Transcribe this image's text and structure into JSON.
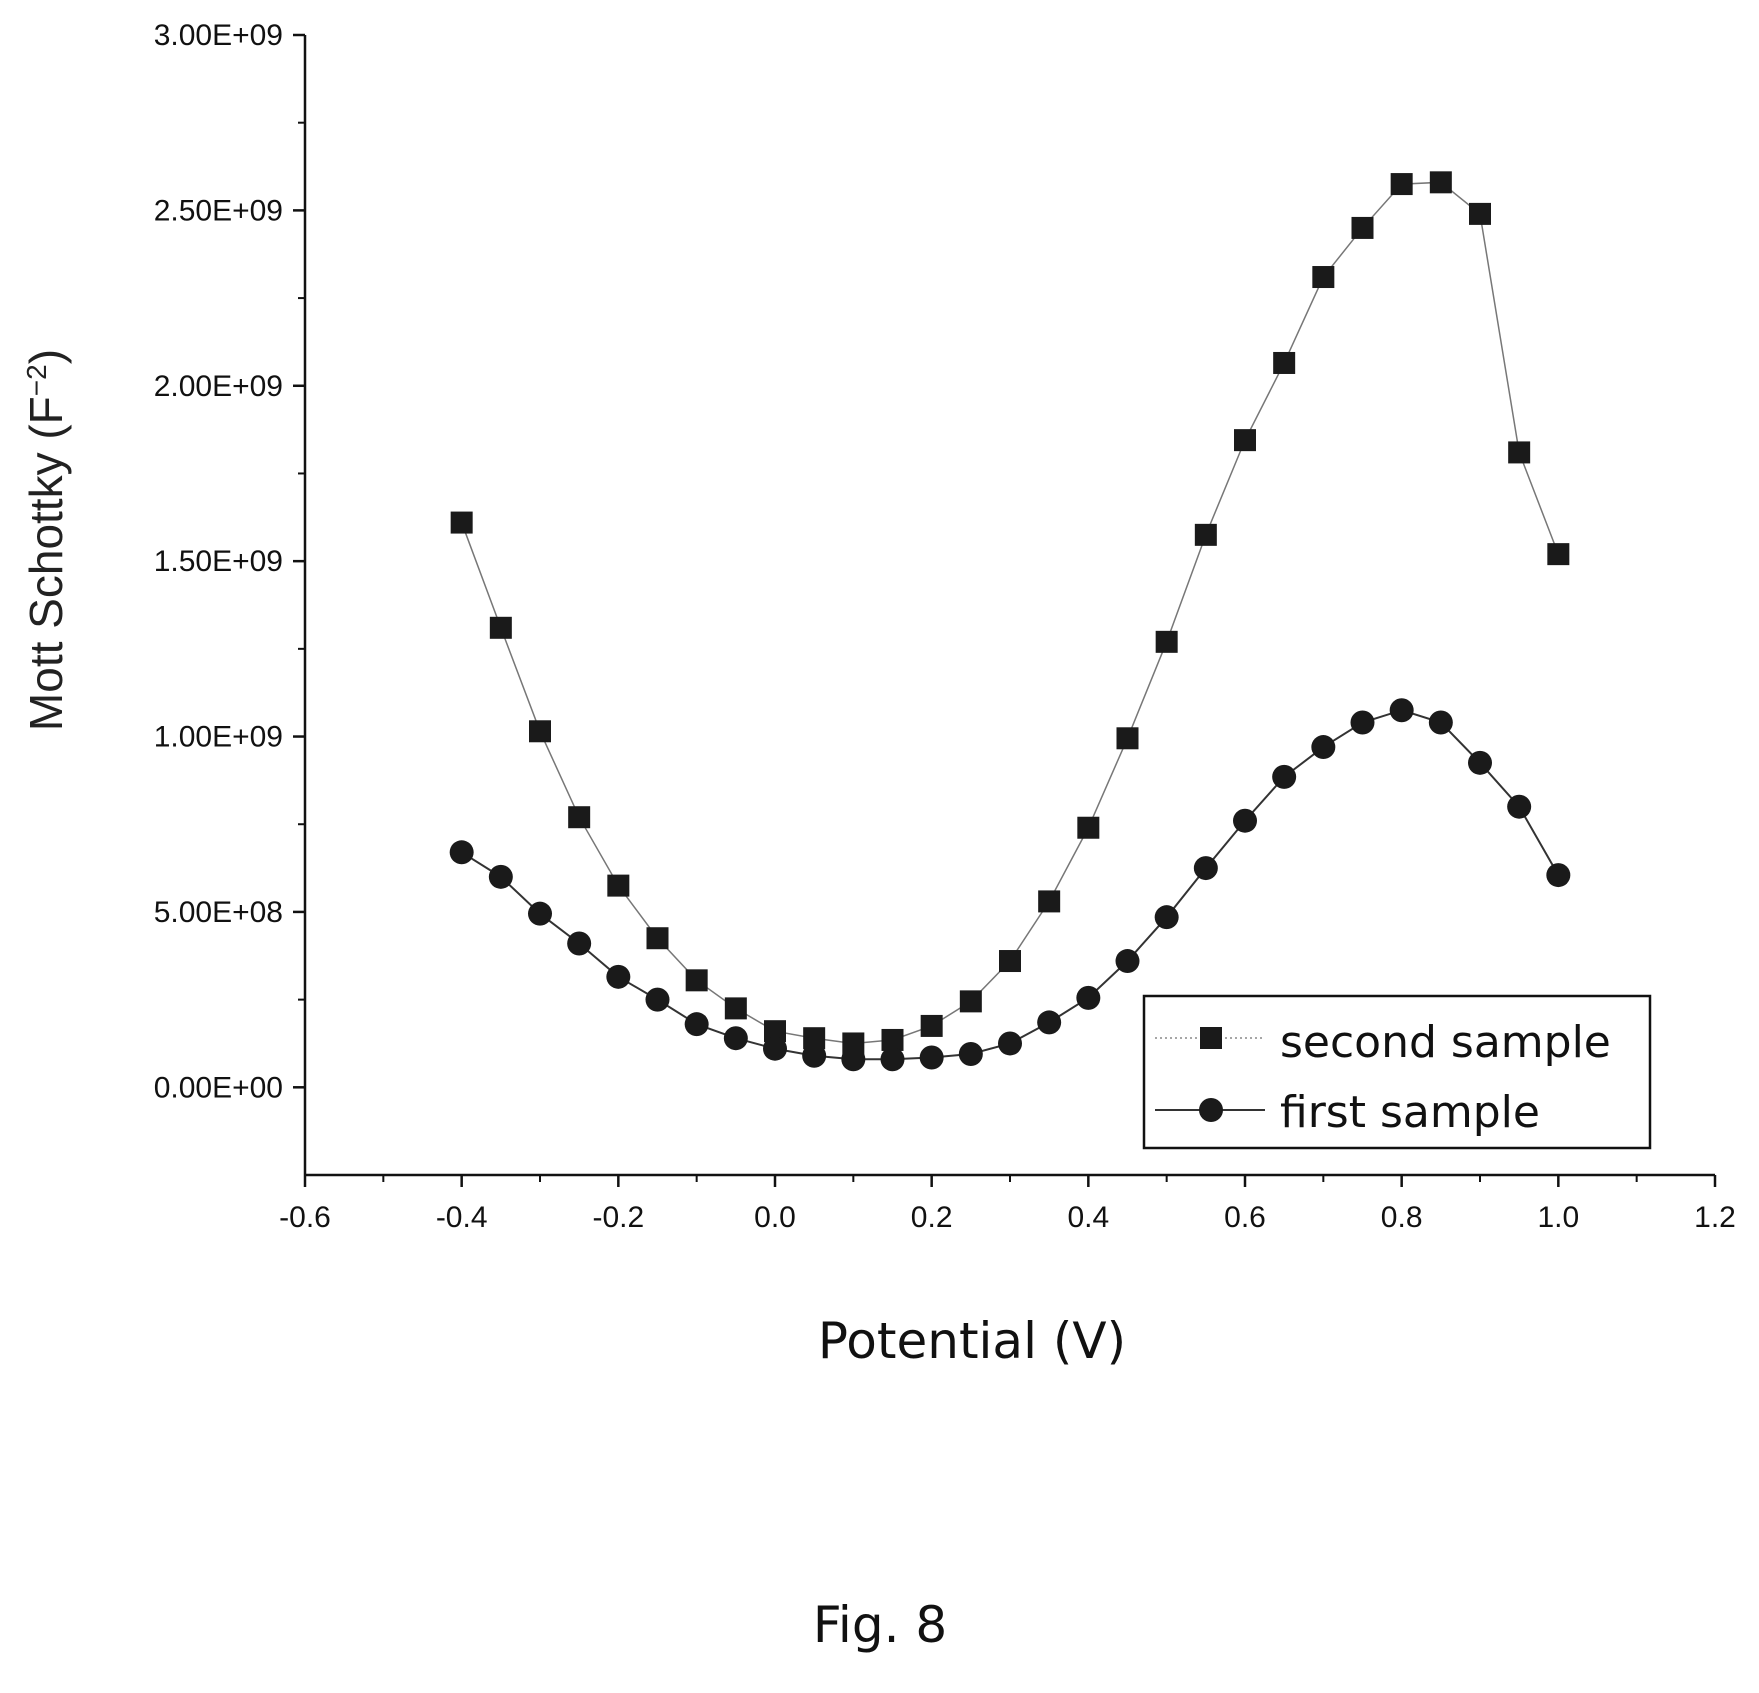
{
  "figure_caption": "Fig. 8",
  "chart_data": {
    "type": "scatter",
    "xlabel": "Potential (V)",
    "ylabel_main": "Mott Schottky (F",
    "ylabel_sup": "−2",
    "ylabel_close": ")",
    "xlim": [
      -0.6,
      1.2
    ],
    "ylim": [
      -250000000,
      3000000000
    ],
    "x_ticks": [
      -0.6,
      -0.4,
      -0.2,
      0.0,
      0.2,
      0.4,
      0.6,
      0.8,
      1.0,
      1.2
    ],
    "x_tick_labels": [
      "-0.6",
      "-0.4",
      "-0.2",
      "0.0",
      "0.2",
      "0.4",
      "0.6",
      "0.8",
      "1.0",
      "1.2"
    ],
    "y_ticks": [
      0,
      500000000,
      1000000000,
      1500000000,
      2000000000,
      2500000000,
      3000000000
    ],
    "y_tick_labels": [
      "0.00E+00",
      "5.00E+08",
      "1.00E+09",
      "1.50E+09",
      "2.00E+09",
      "2.50E+09",
      "3.00E+09"
    ],
    "grid": false,
    "legend_position": "bottom-right",
    "x": [
      -0.4,
      -0.35,
      -0.3,
      -0.25,
      -0.2,
      -0.15,
      -0.1,
      -0.05,
      0.0,
      0.05,
      0.1,
      0.15,
      0.2,
      0.25,
      0.3,
      0.35,
      0.4,
      0.45,
      0.5,
      0.55,
      0.6,
      0.65,
      0.7,
      0.75,
      0.8,
      0.85,
      0.9,
      0.95,
      1.0
    ],
    "series": [
      {
        "name": "second sample",
        "marker": "square",
        "values": [
          1610000000,
          1310000000,
          1015000000,
          770000000,
          575000000,
          425000000,
          305000000,
          225000000,
          160000000,
          140000000,
          125000000,
          135000000,
          175000000,
          245000000,
          360000000,
          530000000,
          740000000,
          995000000,
          1270000000,
          1575000000,
          1845000000,
          2065000000,
          2310000000,
          2450000000,
          2575000000,
          2580000000,
          2490000000,
          1810000000,
          1520000000
        ],
        "color": "#1a1a1a"
      },
      {
        "name": "first sample",
        "marker": "circle",
        "values": [
          670000000,
          600000000,
          495000000,
          410000000,
          315000000,
          250000000,
          180000000,
          140000000,
          110000000,
          90000000,
          80000000,
          80000000,
          85000000,
          95000000,
          125000000,
          185000000,
          255000000,
          360000000,
          485000000,
          625000000,
          760000000,
          885000000,
          970000000,
          1040000000,
          1075000000,
          1040000000,
          925000000,
          800000000,
          605000000
        ],
        "color": "#1a1a1a"
      }
    ]
  }
}
